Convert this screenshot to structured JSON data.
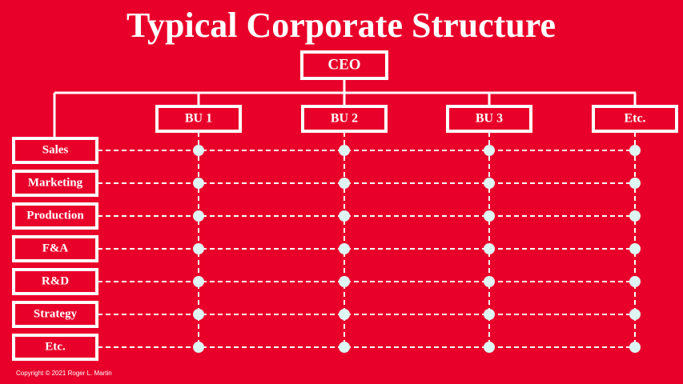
{
  "title": "Typical Corporate Structure",
  "ceo": "CEO",
  "business_units": [
    "BU 1",
    "BU 2",
    "BU 3",
    "Etc."
  ],
  "functions": [
    "Sales",
    "Marketing",
    "Production",
    "F&A",
    "R&D",
    "Strategy",
    "Etc."
  ],
  "copyright": "Copyright © 2021 Roger L. Martin"
}
